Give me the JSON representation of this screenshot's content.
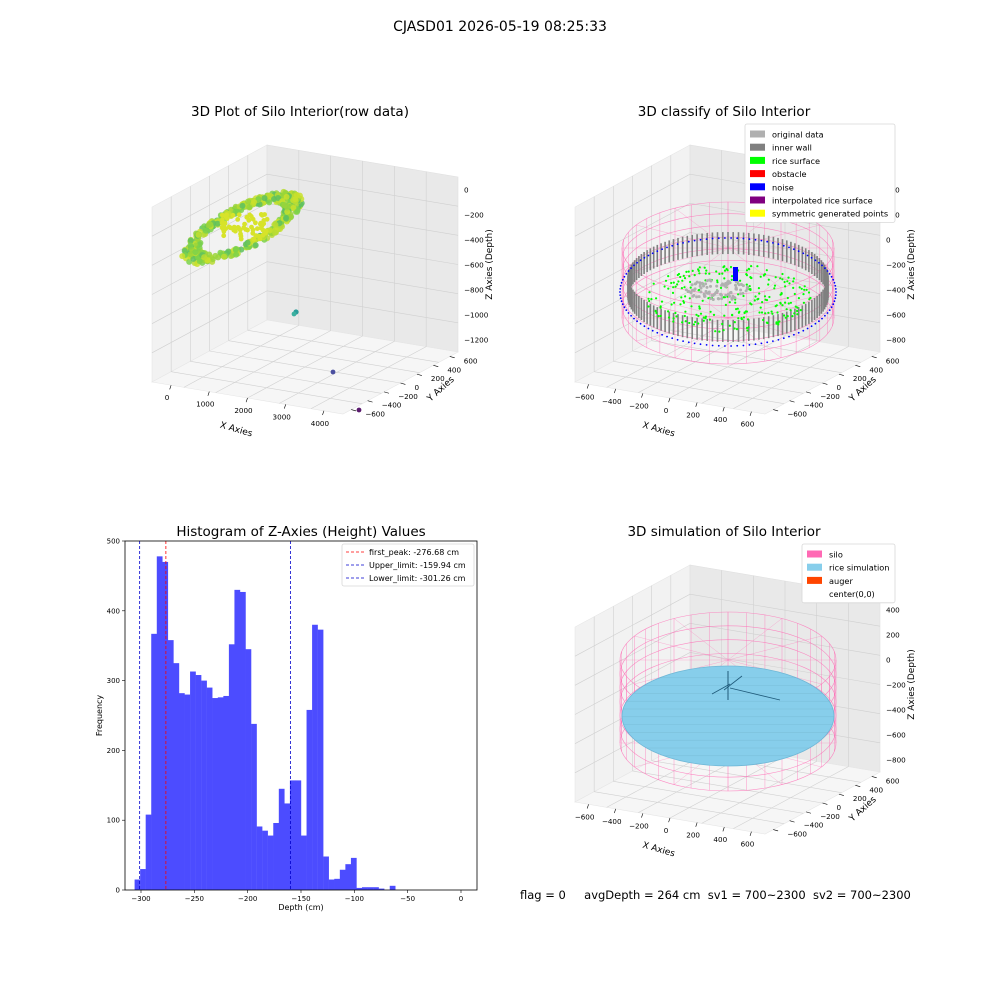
{
  "figure": {
    "suptitle": "CJASD01 2026-05-19 08:25:33"
  },
  "status": {
    "flag": "flag = 0",
    "avg_depth": "avgDepth = 264 cm",
    "sv1": "sv1 = 700~2300",
    "sv2": "sv2 = 700~2300"
  },
  "colors": {
    "histogram_bar": "#4c4cff",
    "first_peak_line": "#ff0000",
    "limit_lines": "#0000cc",
    "silo": "#ff69b4",
    "rice_simulation": "#87ceeb",
    "auger": "#ff4500",
    "original_data": "#b0b0b0",
    "inner_wall": "#808080",
    "rice_surface": "#00ff00",
    "obstacle": "#ff0000",
    "noise": "#0000ff",
    "interpolated_rice_surface": "#800080",
    "symmetric_generated_points": "#ffff00"
  },
  "chart_data": [
    {
      "type": "scatter3d",
      "title": "3D Plot of Silo Interior(row data)",
      "xlabel": "X Axies",
      "ylabel": "Y Axies",
      "zlabel": "Z Axies (Depth)",
      "xticks": [
        "0",
        "1000",
        "2000",
        "3000",
        "4000"
      ],
      "yticks": [
        "600",
        "400",
        "200",
        "0",
        "−200",
        "−400",
        "−600"
      ],
      "zticks": [
        "0",
        "−200",
        "−400",
        "−600",
        "−800",
        "−1000",
        "−1200"
      ],
      "grid": true
    },
    {
      "type": "scatter3d",
      "title": "3D classify of Silo Interior",
      "xlabel": "X Axies",
      "ylabel": "Y Axies",
      "zlabel": "Z Axies (Depth)",
      "xticks": [
        "−600",
        "−400",
        "−200",
        "0",
        "200",
        "400",
        "600"
      ],
      "yticks": [
        "600",
        "400",
        "200",
        "0",
        "−200",
        "−400",
        "−600"
      ],
      "zticks": [
        "400",
        "200",
        "0",
        "−200",
        "−400",
        "−600",
        "−800"
      ],
      "legend_position": "top-right",
      "legend": [
        "original data",
        "inner wall",
        "rice surface",
        "obstacle",
        "noise",
        "interpolated rice surface",
        "symmetric generated points"
      ],
      "grid": true
    },
    {
      "type": "bar",
      "title": "Histogram of Z-Axies (Height) Values",
      "xlabel": "Depth (cm)",
      "ylabel": "Frequency",
      "xlim": [
        -315,
        15
      ],
      "ylim": [
        0,
        500
      ],
      "xticks": [
        -300,
        -250,
        -200,
        -150,
        -100,
        -50,
        0
      ],
      "xtick_labels": [
        "−300",
        "−250",
        "−200",
        "−150",
        "−100",
        "−50",
        "0"
      ],
      "yticks": [
        0,
        100,
        200,
        300,
        400,
        500
      ],
      "bin_start": -306.0,
      "bin_width": 5.2,
      "values": [
        15,
        30,
        108,
        367,
        478,
        470,
        358,
        325,
        282,
        280,
        313,
        308,
        300,
        290,
        275,
        276,
        278,
        352,
        430,
        427,
        345,
        238,
        91,
        85,
        78,
        96,
        145,
        124,
        157,
        157,
        78,
        258,
        380,
        373,
        48,
        15,
        16,
        29,
        37,
        46,
        3,
        4,
        4,
        4,
        2,
        0,
        6
      ],
      "vlines": [
        {
          "x": -276.68,
          "label": "first_peak: -276.68 cm",
          "color": "#ff0000"
        },
        {
          "x": -159.94,
          "label": "Upper_limit: -159.94 cm",
          "color": "#0000cc"
        },
        {
          "x": -301.26,
          "label": "Lower_limit: -301.26 cm",
          "color": "#0000cc"
        }
      ],
      "legend_position": "top-right",
      "grid": false
    },
    {
      "type": "surface3d",
      "title": "3D simulation of Silo Interior",
      "xlabel": "X Axies",
      "ylabel": "Y Axies",
      "zlabel": "Z Axies (Depth)",
      "xticks": [
        "−600",
        "−400",
        "−200",
        "0",
        "200",
        "400",
        "600"
      ],
      "yticks": [
        "600",
        "400",
        "200",
        "0",
        "−200",
        "−400",
        "−600"
      ],
      "zticks": [
        "400",
        "200",
        "0",
        "−200",
        "−400",
        "−600",
        "−800"
      ],
      "legend_position": "top-right",
      "legend": [
        "silo",
        "rice simulation",
        "auger",
        "center(0,0)"
      ],
      "grid": true
    }
  ]
}
